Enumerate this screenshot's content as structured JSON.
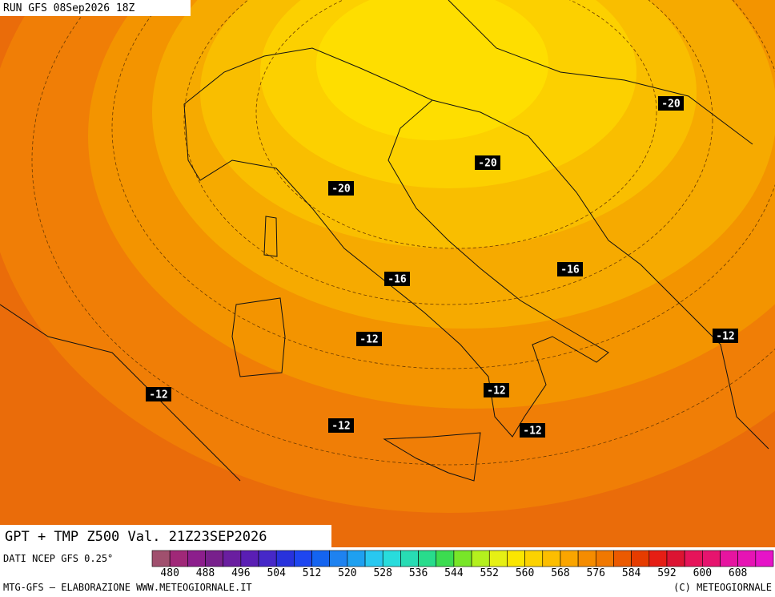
{
  "header": {
    "run": "RUN GFS 08Sep2026 18Z"
  },
  "footer": {
    "title": "GPT + TMP Z500 Val. 21Z23SEP2026",
    "source": "DATI NCEP GFS 0.25°",
    "credit": "MTG-GFS — ELABORAZIONE WWW.METEOGIORNALE.IT",
    "copyright": "(C) METEOGIORNALE"
  },
  "colorbar": {
    "labels": [
      480,
      488,
      496,
      504,
      512,
      520,
      528,
      536,
      544,
      552,
      560,
      568,
      576,
      584,
      592,
      600,
      608
    ]
  },
  "contour_labels": [
    "-20",
    "-20",
    "-20",
    "-16",
    "-16",
    "-12",
    "-12",
    "-12",
    "-12",
    "-12",
    "-12"
  ]
}
